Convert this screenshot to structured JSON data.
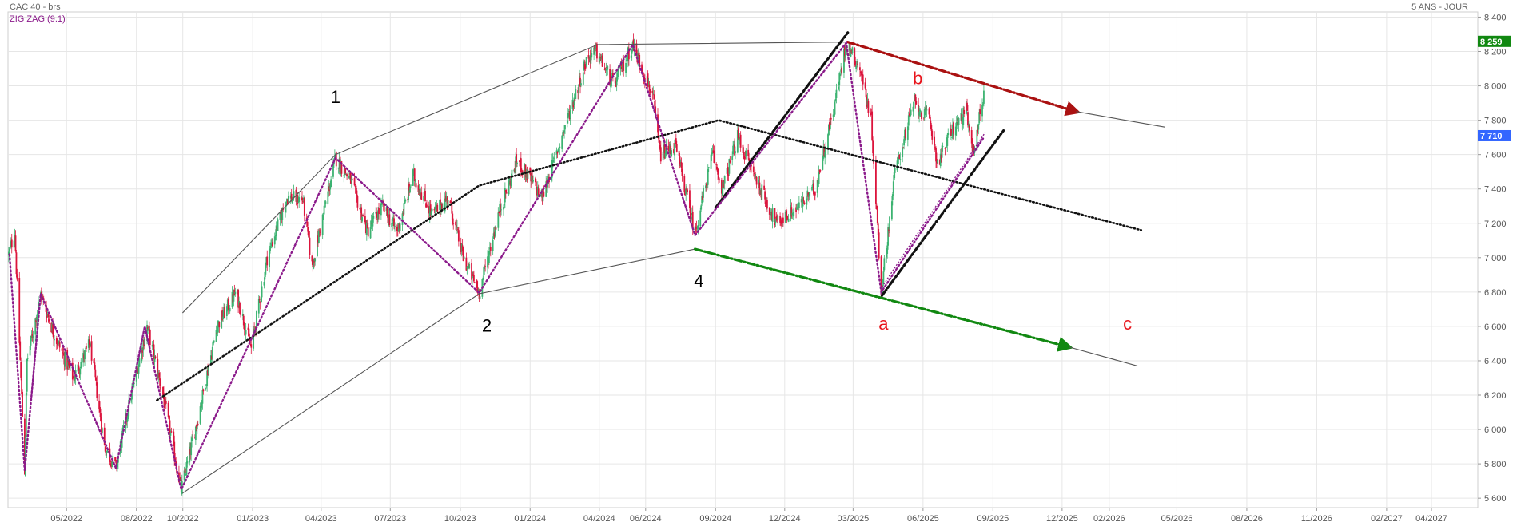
{
  "header": {
    "instrument": "CAC 40 - brs",
    "indicator": "ZIG ZAG (9.1)",
    "period": "5 ANS - JOUR"
  },
  "colors": {
    "up_candle": "#3cb371",
    "down_candle": "#dc143c",
    "zigzag": "#8b1a8b",
    "last_price_badge": "#3366ff",
    "high_badge": "#118811",
    "red_arrow": "#aa1111",
    "green_arrow": "#118811",
    "wave_label_red": "#e8141b",
    "grid": "#e6e6e6"
  },
  "chart_data": {
    "type": "candlestick",
    "title": "CAC 40 - brs",
    "period": "5 ANS - JOUR",
    "indicator": "ZIG ZAG (9.1)",
    "grid": true,
    "x_tick_labels": [
      "05/2022",
      "08/2022",
      "10/2022",
      "01/2023",
      "04/2023",
      "07/2023",
      "10/2023",
      "01/2024",
      "04/2024",
      "06/2024",
      "09/2024",
      "12/2024",
      "03/2025",
      "06/2025",
      "09/2025",
      "12/2025",
      "02/2026",
      "05/2026",
      "08/2026",
      "11/2026",
      "02/2027",
      "04/2027"
    ],
    "y_ticks": [
      5600,
      5800,
      6000,
      6200,
      6400,
      6600,
      6800,
      7000,
      7200,
      7400,
      7600,
      7800,
      8000,
      8200,
      8400
    ],
    "y_tick_labels": [
      "5 600",
      "5 800",
      "6 000",
      "6 200",
      "6 400",
      "6 600",
      "6 800",
      "7 000",
      "7 200",
      "7 400",
      "7 600",
      "7 800",
      "8 000",
      "8 200",
      "8 400"
    ],
    "ylim": [
      5545,
      8430
    ],
    "xlim": [
      "2022-02-13",
      "2027-06-01"
    ],
    "last_price": 7710,
    "last_price_label": "7 710",
    "high_value": 8259,
    "high_label": "8 259",
    "zigzag_points": [
      [
        "2022-02-15",
        7020
      ],
      [
        "2022-03-07",
        5760
      ],
      [
        "2022-03-28",
        6790
      ],
      [
        "2022-07-05",
        5775
      ],
      [
        "2022-08-12",
        6600
      ],
      [
        "2022-09-29",
        5650
      ],
      [
        "2023-04-20",
        7580
      ],
      [
        "2023-10-26",
        6795
      ],
      [
        "2024-05-15",
        8240
      ],
      [
        "2024-08-05",
        7130
      ],
      [
        "2025-02-20",
        8250
      ],
      [
        "2025-04-07",
        6800
      ],
      [
        "2025-08-20",
        7700
      ]
    ],
    "zigzag_dashed": [
      [
        "2025-04-08",
        6830
      ],
      [
        "2025-08-22",
        7730
      ]
    ],
    "wave_labels": [
      {
        "label": "1",
        "x": "2023-04-20",
        "y": 7900,
        "color": "#000000"
      },
      {
        "label": "2",
        "x": "2023-11-05",
        "y": 6570,
        "color": "#000000"
      },
      {
        "label": "4",
        "x": "2024-08-10",
        "y": 6830,
        "color": "#000000"
      },
      {
        "label": "a",
        "x": "2025-04-10",
        "y": 6580,
        "color": "#e8141b"
      },
      {
        "label": "b",
        "x": "2025-05-25",
        "y": 8010,
        "color": "#e8141b"
      },
      {
        "label": "c",
        "x": "2026-02-25",
        "y": 6580,
        "color": "#e8141b"
      }
    ],
    "trendlines": [
      {
        "style": "solid",
        "color": "#555555",
        "width": 1.1,
        "points": [
          [
            "2022-10-01",
            6680
          ],
          [
            "2023-04-20",
            7600
          ],
          [
            "2024-03-30",
            8240
          ],
          [
            "2025-02-20",
            8255
          ]
        ]
      },
      {
        "style": "solid",
        "color": "#555555",
        "width": 1.1,
        "points": [
          [
            "2022-10-01",
            5630
          ],
          [
            "2023-10-26",
            6790
          ],
          [
            "2024-08-05",
            7050
          ]
        ]
      },
      {
        "style": "dotted",
        "color": "#111111",
        "width": 2.6,
        "points": [
          [
            "2022-08-28",
            6170
          ],
          [
            "2023-10-26",
            7420
          ],
          [
            "2024-09-05",
            7800
          ],
          [
            "2026-03-15",
            7160
          ]
        ]
      },
      {
        "style": "dashdot",
        "color": "#111111",
        "width": 3.2,
        "points": [
          [
            "2024-09-01",
            7290
          ],
          [
            "2025-02-22",
            8310
          ]
        ]
      },
      {
        "style": "dashdot",
        "color": "#111111",
        "width": 3.2,
        "points": [
          [
            "2025-04-08",
            6780
          ],
          [
            "2025-09-15",
            7740
          ]
        ]
      },
      {
        "style": "dashdot",
        "color": "#aa1111",
        "width": 3.2,
        "arrow": true,
        "points": [
          [
            "2025-02-22",
            8255
          ],
          [
            "2025-12-20",
            7850
          ]
        ]
      },
      {
        "style": "dashdot",
        "color": "#118811",
        "width": 3.2,
        "arrow": true,
        "points": [
          [
            "2024-08-05",
            7050
          ],
          [
            "2025-12-10",
            6480
          ]
        ]
      },
      {
        "style": "solid",
        "color": "#555555",
        "width": 1.1,
        "points": [
          [
            "2025-12-20",
            7850
          ],
          [
            "2026-04-15",
            7760
          ]
        ]
      },
      {
        "style": "solid",
        "color": "#555555",
        "width": 1.1,
        "points": [
          [
            "2025-12-10",
            6480
          ],
          [
            "2026-03-10",
            6370
          ]
        ]
      }
    ],
    "price_anchors": [
      [
        "2022-02-14",
        7020
      ],
      [
        "2022-02-22",
        7150
      ],
      [
        "2022-03-07",
        5760
      ],
      [
        "2022-03-10",
        6400
      ],
      [
        "2022-03-28",
        6790
      ],
      [
        "2022-04-15",
        6550
      ],
      [
        "2022-05-10",
        6300
      ],
      [
        "2022-06-01",
        6500
      ],
      [
        "2022-06-20",
        5900
      ],
      [
        "2022-07-05",
        5780
      ],
      [
        "2022-07-25",
        6200
      ],
      [
        "2022-08-15",
        6600
      ],
      [
        "2022-09-05",
        6200
      ],
      [
        "2022-09-29",
        5650
      ],
      [
        "2022-10-20",
        6050
      ],
      [
        "2022-11-15",
        6600
      ],
      [
        "2022-12-10",
        6800
      ],
      [
        "2022-12-30",
        6470
      ],
      [
        "2023-01-20",
        7000
      ],
      [
        "2023-02-15",
        7350
      ],
      [
        "2023-03-08",
        7340
      ],
      [
        "2023-03-20",
        6950
      ],
      [
        "2023-04-20",
        7580
      ],
      [
        "2023-05-10",
        7450
      ],
      [
        "2023-06-01",
        7150
      ],
      [
        "2023-06-20",
        7300
      ],
      [
        "2023-07-10",
        7150
      ],
      [
        "2023-07-31",
        7480
      ],
      [
        "2023-08-25",
        7250
      ],
      [
        "2023-09-15",
        7350
      ],
      [
        "2023-10-05",
        7000
      ],
      [
        "2023-10-26",
        6795
      ],
      [
        "2023-11-20",
        7250
      ],
      [
        "2023-12-15",
        7570
      ],
      [
        "2024-01-17",
        7350
      ],
      [
        "2024-02-15",
        7750
      ],
      [
        "2024-03-15",
        8150
      ],
      [
        "2024-03-28",
        8200
      ],
      [
        "2024-04-20",
        8000
      ],
      [
        "2024-05-15",
        8240
      ],
      [
        "2024-06-10",
        7950
      ],
      [
        "2024-06-20",
        7600
      ],
      [
        "2024-07-10",
        7650
      ],
      [
        "2024-08-05",
        7150
      ],
      [
        "2024-08-28",
        7600
      ],
      [
        "2024-09-10",
        7400
      ],
      [
        "2024-09-30",
        7700
      ],
      [
        "2024-10-20",
        7500
      ],
      [
        "2024-11-20",
        7200
      ],
      [
        "2024-12-20",
        7300
      ],
      [
        "2025-01-10",
        7400
      ],
      [
        "2025-02-05",
        7900
      ],
      [
        "2025-02-20",
        8250
      ],
      [
        "2025-03-10",
        8100
      ],
      [
        "2025-03-25",
        7800
      ],
      [
        "2025-04-07",
        6800
      ],
      [
        "2025-04-25",
        7500
      ],
      [
        "2025-05-20",
        7900
      ],
      [
        "2025-06-10",
        7800
      ],
      [
        "2025-06-20",
        7550
      ],
      [
        "2025-07-10",
        7750
      ],
      [
        "2025-07-28",
        7850
      ],
      [
        "2025-08-05",
        7600
      ],
      [
        "2025-08-20",
        7950
      ]
    ]
  }
}
